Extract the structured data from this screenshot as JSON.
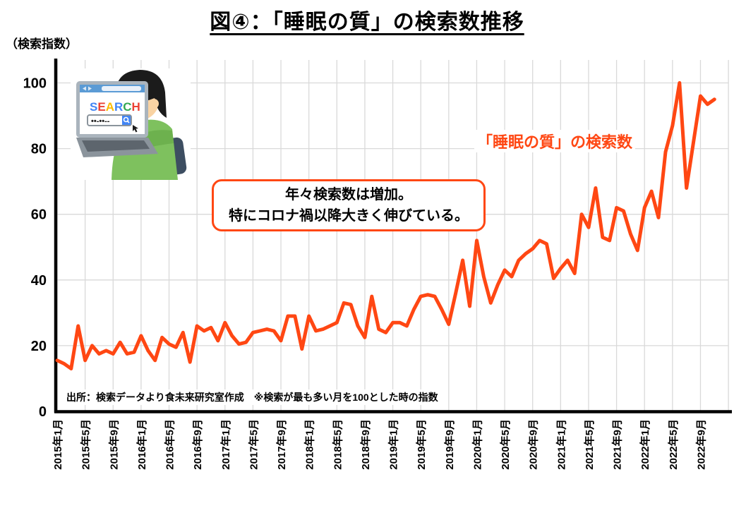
{
  "header": {
    "title": "図④：「睡眠の質」の検索数推移"
  },
  "chart": {
    "y_unit_label": "（検索指数）",
    "series_label": "「睡眠の質」の検索数",
    "accent_color": "#FF4713",
    "grid_color": "#D9D9D9",
    "axis_color": "#000000"
  },
  "annotation": {
    "line1": "年々検索数は増加。",
    "line2": "特にコロナ禍以降大きく伸びている。"
  },
  "footer": {
    "source": "出所：検索データより食未来研究室作成　※検索が最も多い月を100とした時の指数"
  },
  "illustration": {
    "search_text": "SEARCH",
    "search_letter_colors": [
      "#4285f4",
      "#ea4335",
      "#fbbc05",
      "#4285f4",
      "#34a853",
      "#ea4335"
    ]
  },
  "chart_data": {
    "type": "line",
    "title": "図④：「睡眠の質」の検索数推移",
    "xlabel": "",
    "ylabel": "（検索指数）",
    "ylim": [
      0,
      100
    ],
    "y_ticks": [
      0,
      20,
      40,
      60,
      80,
      100
    ],
    "grid": true,
    "x_start": "2015-01",
    "x_end": "2022-11",
    "x_tick_interval_months": 4,
    "x_tick_labels": [
      "2015年1月",
      "2015年5月",
      "2015年9月",
      "2016年1月",
      "2016年5月",
      "2016年9月",
      "2017年1月",
      "2017年5月",
      "2017年9月",
      "2018年1月",
      "2018年5月",
      "2018年9月",
      "2019年1月",
      "2019年5月",
      "2019年9月",
      "2020年1月",
      "2020年5月",
      "2020年9月",
      "2021年1月",
      "2021年5月",
      "2021年9月",
      "2022年1月",
      "2022年5月",
      "2022年9月"
    ],
    "series": [
      {
        "name": "「睡眠の質」の検索数",
        "values": [
          15.5,
          14.5,
          13,
          26,
          15.5,
          20,
          17.5,
          18.5,
          17.5,
          21,
          17.5,
          18,
          23,
          18.5,
          15.5,
          22.5,
          20.5,
          19.5,
          24,
          15,
          26,
          24.5,
          25.5,
          21.5,
          27,
          23,
          20.5,
          21,
          24,
          24.5,
          25,
          24.5,
          21.5,
          29,
          29,
          19,
          29,
          24.5,
          25,
          26,
          27,
          33,
          32.5,
          26,
          22.5,
          35,
          25,
          24,
          27,
          27,
          26,
          31,
          35,
          35.5,
          35,
          31,
          26.5,
          36,
          46,
          32,
          52,
          41,
          33,
          38.5,
          43,
          41,
          46,
          48,
          49.5,
          52,
          51,
          40.5,
          43.5,
          46,
          42,
          60,
          56,
          68,
          53,
          52,
          62,
          61,
          54,
          49,
          62,
          67,
          59,
          79,
          87,
          100,
          68,
          82,
          96,
          93.5,
          95
        ]
      }
    ]
  }
}
